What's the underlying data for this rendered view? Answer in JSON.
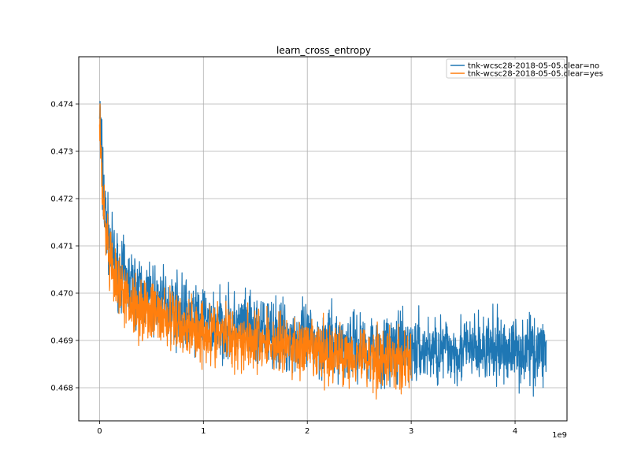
{
  "chart_data": {
    "type": "line",
    "title": "learn_cross_entropy",
    "xlabel": "",
    "ylabel": "",
    "x_offset_label": "1e9",
    "xlim": [
      -0.2,
      4.5
    ],
    "ylim": [
      0.4673,
      0.475
    ],
    "x_ticks": [
      0,
      1,
      2,
      3,
      4
    ],
    "y_ticks": [
      0.468,
      0.469,
      0.47,
      0.471,
      0.472,
      0.473,
      0.474
    ],
    "x_tick_labels": [
      "0",
      "1",
      "2",
      "3",
      "4"
    ],
    "y_tick_labels": [
      "0.468",
      "0.469",
      "0.470",
      "0.471",
      "0.472",
      "0.473",
      "0.474"
    ],
    "grid": true,
    "legend_position": "top-right",
    "series": [
      {
        "name": "tnk-wcsc28-2018-05-05.clear=no",
        "color": "#1f77b4",
        "x": [
          0,
          0.02,
          0.05,
          0.1,
          0.15,
          0.25,
          0.4,
          0.6,
          0.8,
          1.0,
          1.25,
          1.5,
          1.75,
          2.0,
          2.25,
          2.5,
          2.75,
          3.0,
          3.25,
          3.5,
          3.75,
          4.0,
          4.3
        ],
        "y": [
          0.474,
          0.4728,
          0.4718,
          0.471,
          0.4706,
          0.4703,
          0.47,
          0.4698,
          0.4696,
          0.4694,
          0.4693,
          0.4692,
          0.4691,
          0.469,
          0.4689,
          0.4689,
          0.4688,
          0.4688,
          0.4688,
          0.4688,
          0.4688,
          0.4688,
          0.4688
        ]
      },
      {
        "name": "tnk-wcsc28-2018-05-05.clear=yes",
        "color": "#ff7f0e",
        "x": [
          0,
          0.02,
          0.05,
          0.1,
          0.15,
          0.25,
          0.4,
          0.6,
          0.8,
          1.0,
          1.25,
          1.5,
          1.75,
          2.0,
          2.25,
          2.5,
          2.75,
          3.0
        ],
        "y": [
          0.4738,
          0.4725,
          0.4714,
          0.4706,
          0.4702,
          0.4699,
          0.4697,
          0.4695,
          0.4693,
          0.4692,
          0.4691,
          0.469,
          0.4689,
          0.4688,
          0.4687,
          0.4687,
          0.4686,
          0.4686
        ]
      }
    ]
  }
}
